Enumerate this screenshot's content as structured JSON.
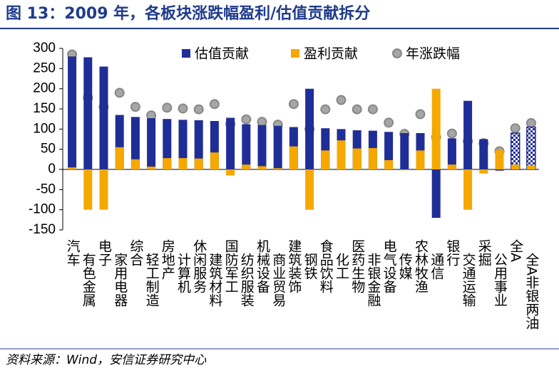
{
  "chart_data": {
    "type": "bar",
    "title": "图 13：2009 年，各板块涨跌幅盈利/估值贡献拆分",
    "source": "资料来源：Wind，安信证券研究中心",
    "categories": [
      "汽车",
      "有色金属",
      "电子",
      "家用电器",
      "综合",
      "轻工制造",
      "房地产",
      "计算机",
      "休闲服务",
      "建筑材料",
      "国防军工",
      "纺织服装",
      "机械设备",
      "商业贸易",
      "建筑装饰",
      "钢铁",
      "食品饮料",
      "化工",
      "医药生物",
      "非银金融",
      "电气设备",
      "传媒",
      "农林牧渔",
      "通信",
      "银行",
      "交通运输",
      "采掘",
      "公用事业",
      "全A",
      "全A非银两油"
    ],
    "series": [
      {
        "name": "估值贡献",
        "color": "#1f2d96",
        "values": [
          280,
          278,
          255,
          135,
          130,
          127,
          125,
          123,
          122,
          120,
          128,
          112,
          110,
          108,
          105,
          200,
          102,
          100,
          97,
          96,
          93,
          90,
          90,
          -120,
          77,
          170,
          75,
          -3,
          90,
          105
        ]
      },
      {
        "name": "盈利贡献",
        "color": "#f5a800",
        "values": [
          5,
          -100,
          -100,
          55,
          25,
          7,
          28,
          28,
          27,
          42,
          -15,
          12,
          8,
          3,
          57,
          -100,
          47,
          72,
          52,
          53,
          23,
          -2,
          47,
          200,
          12,
          -100,
          -10,
          48,
          12,
          10
        ]
      },
      {
        "name": "年涨跌幅",
        "color": "#a6a6a6",
        "values": [
          285,
          178,
          155,
          190,
          155,
          134,
          153,
          151,
          149,
          162,
          113,
          124,
          118,
          111,
          162,
          100,
          149,
          172,
          149,
          149,
          116,
          88,
          137,
          80,
          89,
          70,
          65,
          45,
          102,
          115
        ]
      }
    ],
    "ylim": [
      -150,
      300
    ],
    "yticks": [
      -150,
      -100,
      -50,
      0,
      50,
      100,
      150,
      200,
      250,
      300
    ]
  }
}
